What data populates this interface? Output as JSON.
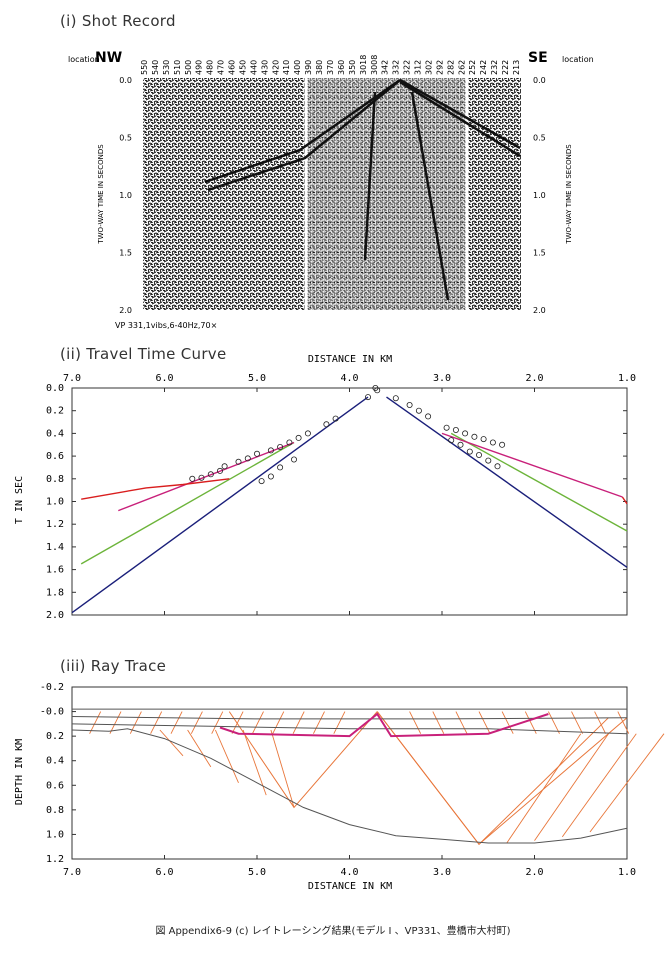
{
  "panel1": {
    "title": "(i) Shot Record",
    "nw": "NW",
    "se": "SE",
    "loc_label": "location",
    "stations": [
      "550",
      "540",
      "530",
      "510",
      "500",
      "490",
      "480",
      "470",
      "460",
      "450",
      "440",
      "430",
      "420",
      "410",
      "400",
      "390",
      "380",
      "370",
      "360",
      "350",
      "3018",
      "3008",
      "342",
      "332",
      "322",
      "312",
      "302",
      "292",
      "282",
      "262",
      "252",
      "242",
      "232",
      "222",
      "213"
    ],
    "time_ticks": [
      "0.0",
      "0.5",
      "1.0",
      "1.5",
      "2.0"
    ],
    "ylabel": "TWO-WAY TIME IN SECONDS",
    "note": "VP 331,1vibs,6-40Hz,70×"
  },
  "chart_data": [
    {
      "type": "line",
      "title": "(ii) Travel Time Curve",
      "xlabel": "DISTANCE IN KM",
      "ylabel": "T IN SEC",
      "xlim": [
        7.0,
        1.0
      ],
      "ylim": [
        2.0,
        0.0
      ],
      "x_ticks": [
        "7.0",
        "6.0",
        "5.0",
        "4.0",
        "3.0",
        "2.0",
        "1.0"
      ],
      "y_ticks": [
        "0.0",
        "0.2",
        "0.4",
        "0.6",
        "0.8",
        "1.0",
        "1.2",
        "1.4",
        "1.6",
        "1.8",
        "2.0"
      ],
      "series": [
        {
          "color": "#1a1f7a",
          "segments": [
            [
              [
                7.0,
                1.98
              ],
              [
                3.8,
                0.08
              ]
            ],
            [
              [
                3.6,
                0.08
              ],
              [
                1.0,
                1.58
              ]
            ]
          ]
        },
        {
          "color": "#6cb43a",
          "segments": [
            [
              [
                6.9,
                1.55
              ],
              [
                4.6,
                0.48
              ]
            ],
            [
              [
                2.9,
                0.4
              ],
              [
                1.0,
                1.26
              ]
            ]
          ]
        },
        {
          "color": "#c8207a",
          "segments": [
            [
              [
                6.5,
                1.08
              ],
              [
                4.6,
                0.48
              ]
            ],
            [
              [
                3.0,
                0.4
              ],
              [
                1.05,
                0.96
              ]
            ]
          ]
        },
        {
          "color": "#d91e1e",
          "segments": [
            [
              [
                6.9,
                0.98
              ],
              [
                6.2,
                0.88
              ],
              [
                5.8,
                0.85
              ],
              [
                5.3,
                0.8
              ]
            ],
            [
              [
                1.05,
                0.96
              ],
              [
                1.0,
                1.02
              ]
            ]
          ]
        }
      ],
      "observed": [
        [
          3.8,
          0.08
        ],
        [
          3.72,
          0.0
        ],
        [
          3.7,
          0.02
        ],
        [
          4.15,
          0.27
        ],
        [
          4.25,
          0.32
        ],
        [
          4.45,
          0.4
        ],
        [
          4.55,
          0.44
        ],
        [
          4.65,
          0.48
        ],
        [
          4.75,
          0.52
        ],
        [
          4.85,
          0.55
        ],
        [
          5.0,
          0.58
        ],
        [
          5.1,
          0.62
        ],
        [
          5.2,
          0.65
        ],
        [
          5.35,
          0.69
        ],
        [
          5.4,
          0.73
        ],
        [
          5.5,
          0.76
        ],
        [
          5.6,
          0.79
        ],
        [
          5.7,
          0.8
        ],
        [
          4.6,
          0.63
        ],
        [
          4.75,
          0.7
        ],
        [
          4.85,
          0.78
        ],
        [
          4.95,
          0.82
        ],
        [
          3.5,
          0.09
        ],
        [
          3.35,
          0.15
        ],
        [
          3.25,
          0.2
        ],
        [
          3.15,
          0.25
        ],
        [
          2.95,
          0.35
        ],
        [
          2.85,
          0.37
        ],
        [
          2.75,
          0.4
        ],
        [
          2.65,
          0.43
        ],
        [
          2.55,
          0.45
        ],
        [
          2.45,
          0.48
        ],
        [
          2.35,
          0.5
        ],
        [
          2.9,
          0.46
        ],
        [
          2.8,
          0.5
        ],
        [
          2.7,
          0.56
        ],
        [
          2.6,
          0.59
        ],
        [
          2.5,
          0.64
        ],
        [
          2.4,
          0.69
        ]
      ]
    },
    {
      "type": "line",
      "title": "(iii) Ray Trace",
      "xlabel": "DISTANCE IN KM",
      "ylabel": "DEPTH IN KM",
      "xlim": [
        7.0,
        1.0
      ],
      "ylim": [
        1.2,
        -0.2
      ],
      "x_ticks": [
        "7.0",
        "6.0",
        "5.0",
        "4.0",
        "3.0",
        "2.0",
        "1.0"
      ],
      "y_ticks": [
        "-0.2",
        "-0.0",
        "0.2",
        "0.4",
        "0.6",
        "0.8",
        "1.0",
        "1.2"
      ],
      "layers": [
        {
          "color": "#555555",
          "points": [
            [
              7.0,
              -0.02
            ],
            [
              1.0,
              -0.02
            ]
          ]
        },
        {
          "color": "#555555",
          "points": [
            [
              7.0,
              0.04
            ],
            [
              5.0,
              0.06
            ],
            [
              3.0,
              0.06
            ],
            [
              1.0,
              0.05
            ]
          ]
        },
        {
          "color": "#555555",
          "points": [
            [
              7.0,
              0.1
            ],
            [
              5.5,
              0.12
            ],
            [
              4.0,
              0.14
            ],
            [
              2.5,
              0.14
            ],
            [
              1.0,
              0.18
            ]
          ]
        },
        {
          "color": "#555555",
          "points": [
            [
              7.0,
              0.15
            ],
            [
              6.6,
              0.16
            ],
            [
              6.4,
              0.14
            ],
            [
              6.0,
              0.22
            ],
            [
              5.5,
              0.38
            ],
            [
              5.0,
              0.58
            ],
            [
              4.5,
              0.78
            ],
            [
              4.0,
              0.92
            ],
            [
              3.5,
              1.01
            ],
            [
              3.0,
              1.04
            ],
            [
              2.5,
              1.07
            ],
            [
              2.0,
              1.07
            ],
            [
              1.5,
              1.03
            ],
            [
              1.0,
              0.95
            ]
          ]
        },
        {
          "color": "#c8207a",
          "points": [
            [
              5.4,
              0.13
            ],
            [
              5.2,
              0.18
            ],
            [
              4.0,
              0.2
            ],
            [
              3.7,
              0.02
            ],
            [
              3.55,
              0.2
            ],
            [
              2.5,
              0.18
            ],
            [
              1.85,
              0.02
            ]
          ]
        }
      ],
      "source_x": 3.7,
      "rays": [
        {
          "points": [
            [
              3.7,
              0.0
            ],
            [
              4.6,
              0.78
            ],
            [
              5.3,
              0.0
            ]
          ]
        },
        {
          "points": [
            [
              3.7,
              0.0
            ],
            [
              2.6,
              1.08
            ],
            [
              1.0,
              0.05
            ]
          ]
        },
        {
          "points": [
            [
              3.7,
              0.0
            ],
            [
              2.6,
              1.08
            ],
            [
              1.2,
              0.05
            ]
          ]
        }
      ]
    }
  ],
  "caption": "図 Appendix6-9 (c)   レイトレーシング結果(モデル I 、VP331、豊橋市大村町)"
}
